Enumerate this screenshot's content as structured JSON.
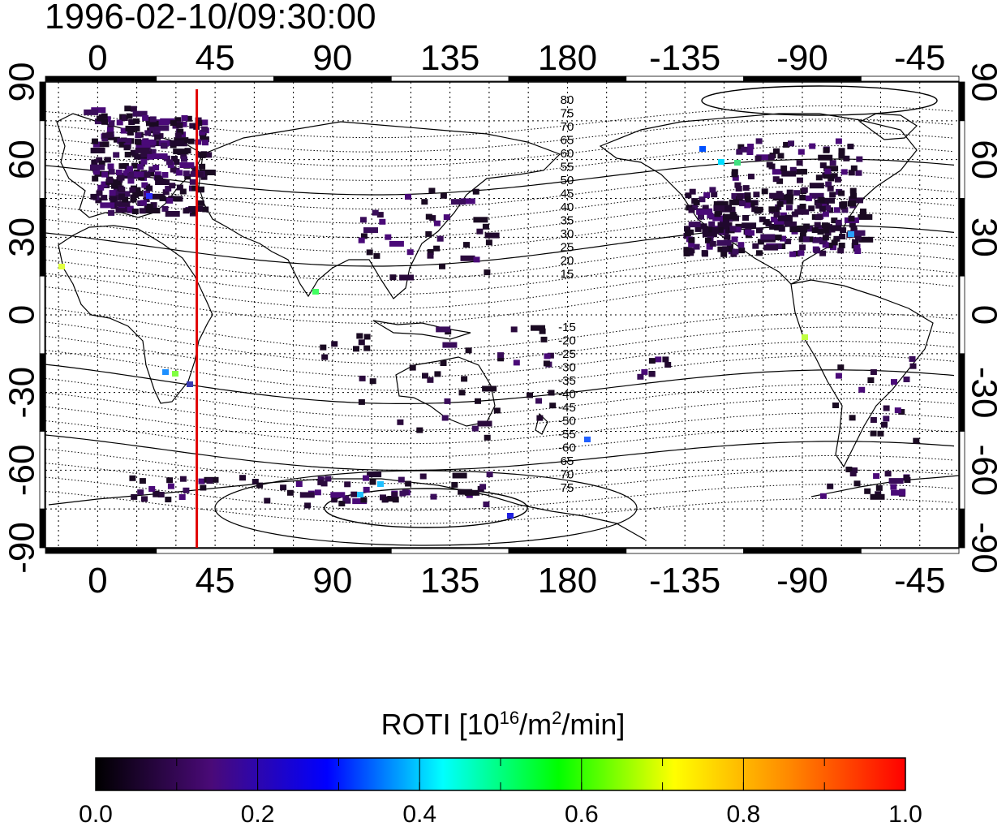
{
  "title": "1996-02-10/09:30:00",
  "map": {
    "lon_ticks": [
      "0",
      "45",
      "90",
      "135",
      "180",
      "-135",
      "-90",
      "-45"
    ],
    "lon_tick_values": [
      0,
      45,
      90,
      135,
      180,
      225,
      270,
      315
    ],
    "lat_ticks": [
      "90",
      "60",
      "30",
      "0",
      "-30",
      "-60",
      "-90"
    ],
    "lat_tick_values": [
      90,
      60,
      30,
      0,
      -30,
      -60,
      -90
    ],
    "lon_range": [
      -20,
      330
    ],
    "lat_range": [
      -90,
      90
    ],
    "meridian_line_lon": 38,
    "meridian_line_color": "#e00000",
    "contour_labels_north": [
      "80",
      "75",
      "70",
      "65",
      "60",
      "55",
      "50",
      "45",
      "40",
      "35",
      "30",
      "25",
      "20",
      "15"
    ],
    "contour_labels_south": [
      "-15",
      "-20",
      "-25",
      "-30",
      "-35",
      "-40",
      "-45",
      "-50",
      "-55",
      "-60",
      "65",
      "70",
      "75"
    ]
  },
  "colorbar": {
    "label_main": "ROTI  [10",
    "label_exp1": "16",
    "label_mid": "/m",
    "label_exp2": "2",
    "label_end": "/min]",
    "ticks": [
      "0.0",
      "0.2",
      "0.4",
      "0.6",
      "0.8",
      "1.0"
    ],
    "range": [
      0,
      1
    ],
    "colors": [
      "#000000",
      "#4a0a78",
      "#0000ff",
      "#00ffff",
      "#00ff00",
      "#ffff00",
      "#ff8800",
      "#ff0000"
    ]
  }
}
